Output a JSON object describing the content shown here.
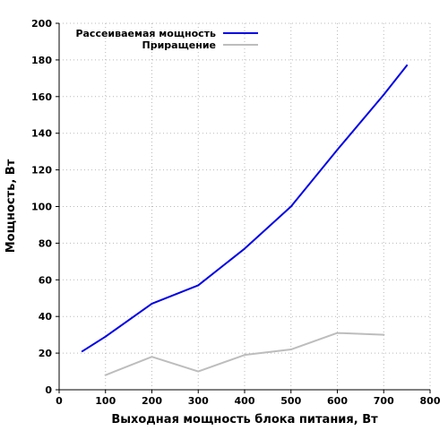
{
  "chart_data": {
    "type": "line",
    "xlabel": "Выходная мощность блока питания, Вт",
    "ylabel": "Мощность, Вт",
    "xlim": [
      0,
      800
    ],
    "ylim": [
      0,
      200
    ],
    "xticks": [
      0,
      100,
      200,
      300,
      400,
      500,
      600,
      700,
      800
    ],
    "yticks": [
      0,
      20,
      40,
      60,
      80,
      100,
      120,
      140,
      160,
      180,
      200
    ],
    "grid": true,
    "legend_position": "top-left",
    "series": [
      {
        "name": "Рассеиваемая мощность",
        "color": "#0000e6",
        "x": [
          50,
          100,
          200,
          300,
          400,
          500,
          600,
          700,
          750
        ],
        "y": [
          21,
          29,
          47,
          57,
          77,
          100,
          131,
          161,
          177
        ]
      },
      {
        "name": "Приращение",
        "color": "#bdbdbd",
        "x": [
          100,
          200,
          300,
          400,
          500,
          600,
          700
        ],
        "y": [
          8,
          18,
          10,
          19,
          22,
          31,
          30
        ]
      }
    ]
  }
}
